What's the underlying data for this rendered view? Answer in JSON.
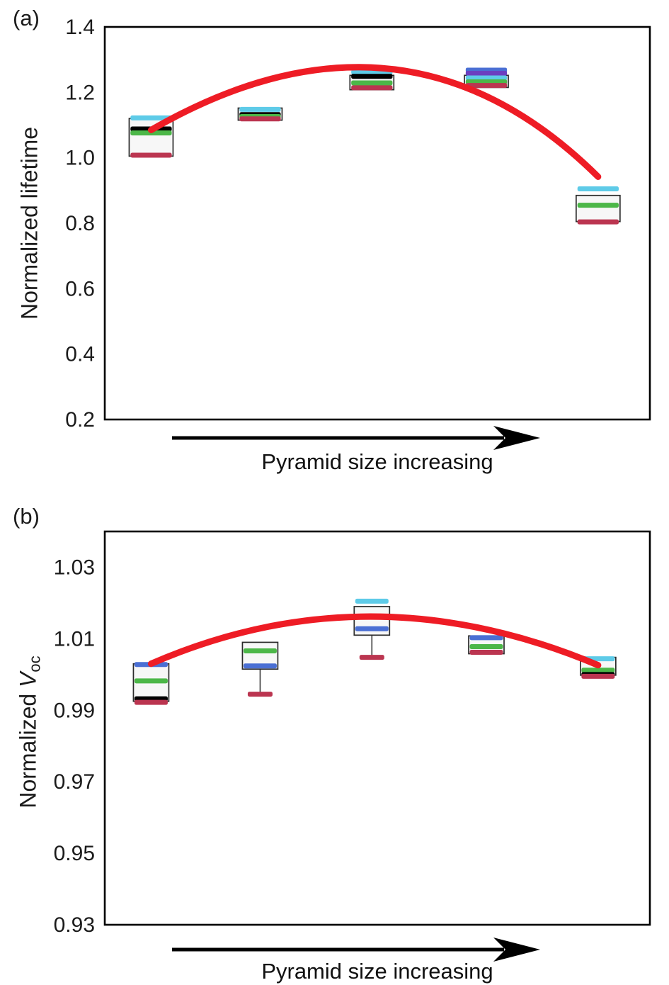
{
  "figure": {
    "panels": [
      {
        "label": "(a)",
        "ylabel": "Normalized lifetime",
        "arrow_caption": "Pyramid size increasing"
      },
      {
        "label": "(b)",
        "ylabel_prefix": "Normalized ",
        "ylabel_var": "V",
        "ylabel_sub": "oc",
        "arrow_caption": "Pyramid size increasing"
      }
    ],
    "colors": {
      "trend_red": "#ee1c25",
      "cyan": "#5ecbe8",
      "green": "#4cb748",
      "crimson": "#bb3550",
      "blue": "#4a6fd4",
      "purple": "#6b3fc0",
      "black": "#000000"
    }
  },
  "chart_data": [
    {
      "type": "boxplot",
      "panel": "(a)",
      "ylabel": "Normalized lifetime",
      "xlabel": "Pyramid size increasing",
      "ylim": [
        0.2,
        1.4
      ],
      "yticks": [
        0.2,
        0.4,
        0.6,
        0.8,
        1.0,
        1.2,
        1.4
      ],
      "ytick_labels": [
        "0.2",
        "0.4",
        "0.6",
        "0.8",
        "1.0",
        "1.2",
        "1.4"
      ],
      "legend": "none",
      "grid": false,
      "boxes": [
        {
          "x": 1,
          "box_low": 1.005,
          "box_high": 1.12,
          "marks": [
            {
              "color": "#5ecbe8",
              "value": 1.122
            },
            {
              "color": "#000000",
              "value": 1.088
            },
            {
              "color": "#4cb748",
              "value": 1.076
            },
            {
              "color": "#bb3550",
              "value": 1.008
            }
          ]
        },
        {
          "x": 2,
          "box_low": 1.115,
          "box_high": 1.152,
          "marks": [
            {
              "color": "#5ecbe8",
              "value": 1.148
            },
            {
              "color": "#000000",
              "value": 1.132
            },
            {
              "color": "#4cb748",
              "value": 1.126
            },
            {
              "color": "#bb3550",
              "value": 1.119
            }
          ]
        },
        {
          "x": 3,
          "box_low": 1.208,
          "box_high": 1.252,
          "marks": [
            {
              "color": "#5ecbe8",
              "value": 1.262
            },
            {
              "color": "#000000",
              "value": 1.249
            },
            {
              "color": "#4cb748",
              "value": 1.229
            },
            {
              "color": "#bb3550",
              "value": 1.214
            }
          ]
        },
        {
          "x": 4,
          "box_low": 1.215,
          "box_high": 1.252,
          "marks": [
            {
              "color": "#4a6fd4",
              "value": 1.268
            },
            {
              "color": "#6b3fc0",
              "value": 1.258
            },
            {
              "color": "#5ecbe8",
              "value": 1.244
            },
            {
              "color": "#4cb748",
              "value": 1.232
            },
            {
              "color": "#bb3550",
              "value": 1.221
            }
          ]
        },
        {
          "x": 5,
          "box_low": 0.805,
          "box_high": 0.885,
          "marks": [
            {
              "color": "#5ecbe8",
              "value": 0.905
            },
            {
              "color": "#4cb748",
              "value": 0.855
            },
            {
              "color": "#bb3550",
              "value": 0.804
            }
          ]
        }
      ],
      "trend_curve": {
        "color": "#ee1c25",
        "points": [
          [
            1,
            1.085
          ],
          [
            3.15,
            1.272
          ],
          [
            5,
            0.942
          ]
        ]
      }
    },
    {
      "type": "boxplot",
      "panel": "(b)",
      "ylabel": "Normalized V_oc",
      "xlabel": "Pyramid size increasing",
      "ylim": [
        0.93,
        1.04
      ],
      "yticks": [
        0.93,
        0.95,
        0.97,
        0.99,
        1.01,
        1.03
      ],
      "ytick_labels": [
        "0.93",
        "0.95",
        "0.97",
        "0.99",
        "1.01",
        "1.03"
      ],
      "legend": "none",
      "grid": false,
      "boxes": [
        {
          "x": 1,
          "box_low": 0.9925,
          "box_high": 1.003,
          "marks": [
            {
              "color": "#4a6fd4",
              "value": 1.0028
            },
            {
              "color": "#4cb748",
              "value": 0.9982
            },
            {
              "color": "#000000",
              "value": 0.9932
            },
            {
              "color": "#bb3550",
              "value": 0.9922
            }
          ]
        },
        {
          "x": 2,
          "box_low": 1.0015,
          "box_high": 1.009,
          "whisker_low": 0.9945,
          "marks": [
            {
              "color": "#4cb748",
              "value": 1.0066
            },
            {
              "color": "#4a6fd4",
              "value": 1.0024
            },
            {
              "color": "#bb3550",
              "value": 0.9945,
              "w": 0.7
            }
          ]
        },
        {
          "x": 3,
          "box_low": 1.011,
          "box_high": 1.019,
          "whisker_low": 1.0048,
          "marks": [
            {
              "color": "#5ecbe8",
              "value": 1.0205
            },
            {
              "color": "#4cb748",
              "value": 1.0162
            },
            {
              "color": "#4a6fd4",
              "value": 1.0128
            },
            {
              "color": "#bb3550",
              "value": 1.0048,
              "w": 0.7
            }
          ]
        },
        {
          "x": 4,
          "box_low": 1.0058,
          "box_high": 1.0108,
          "marks": [
            {
              "color": "#4a6fd4",
              "value": 1.0103
            },
            {
              "color": "#4cb748",
              "value": 1.0078
            },
            {
              "color": "#bb3550",
              "value": 1.0062
            }
          ]
        },
        {
          "x": 5,
          "box_low": 0.9998,
          "box_high": 1.0048,
          "marks": [
            {
              "color": "#5ecbe8",
              "value": 1.0044
            },
            {
              "color": "#4cb748",
              "value": 1.0012
            },
            {
              "color": "#000000",
              "value": 1.0
            },
            {
              "color": "#bb3550",
              "value": 0.9995
            }
          ]
        }
      ],
      "trend_curve": {
        "color": "#ee1c25",
        "points": [
          [
            1,
            1.003
          ],
          [
            3,
            1.0162
          ],
          [
            5,
            1.0026
          ]
        ]
      }
    }
  ]
}
